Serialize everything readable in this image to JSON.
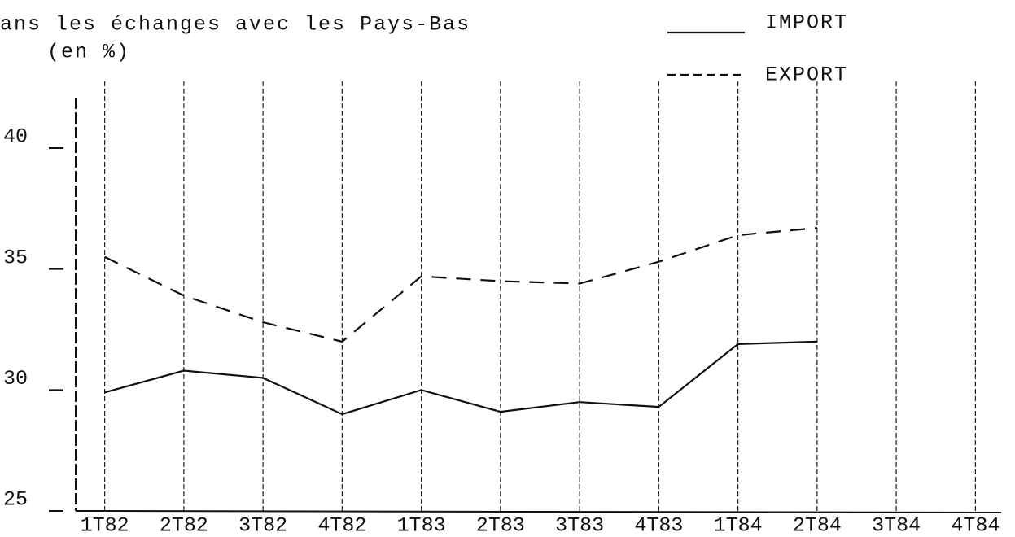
{
  "chart_data": {
    "type": "line",
    "title": "ans les échanges avec les Pays-Bas",
    "subtitle": "(en %)",
    "categories": [
      "1T82",
      "2T82",
      "3T82",
      "4T82",
      "1T83",
      "2T83",
      "3T83",
      "4T83",
      "1T84",
      "2T84",
      "3T84",
      "4T84"
    ],
    "series": [
      {
        "name": "IMPORT",
        "color": "#111111",
        "dash": "solid",
        "values": [
          29.9,
          30.8,
          30.5,
          29.0,
          30.0,
          29.1,
          29.5,
          29.3,
          31.9,
          32.0,
          null,
          null
        ]
      },
      {
        "name": "EXPORT",
        "color": "#111111",
        "dash": "dashed",
        "values": [
          35.5,
          33.9,
          32.8,
          32.0,
          34.7,
          34.5,
          34.4,
          35.3,
          36.4,
          36.7,
          null,
          null
        ]
      }
    ],
    "ylim": [
      25,
      40
    ],
    "yticks": [
      25,
      30,
      35,
      40
    ],
    "grid": true,
    "legend": "top-right"
  }
}
